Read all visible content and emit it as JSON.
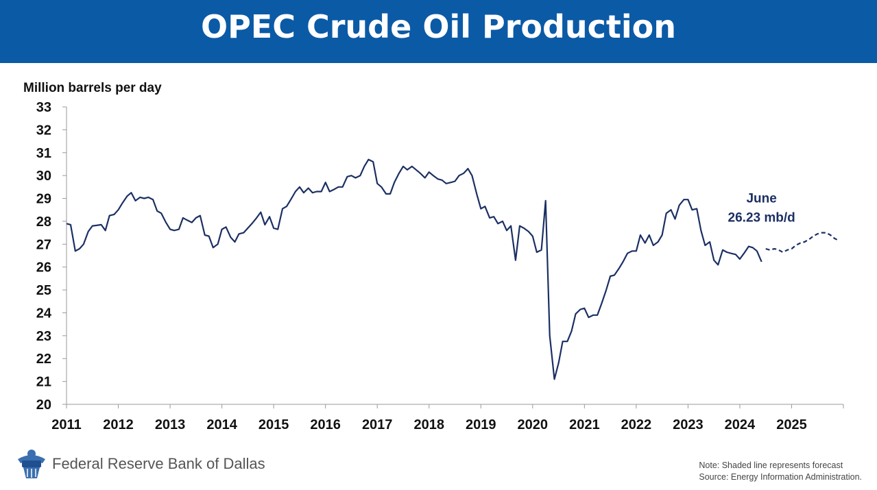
{
  "header": {
    "title": "OPEC Crude Oil Production"
  },
  "chart_data": {
    "type": "line",
    "title": "OPEC Crude Oil Production",
    "ylabel": "Million barrels per day",
    "xlabel": "",
    "ylim": [
      20,
      33
    ],
    "xlim": [
      2011,
      2026
    ],
    "yticks": [
      "20",
      "21",
      "22",
      "23",
      "24",
      "25",
      "26",
      "27",
      "28",
      "29",
      "30",
      "31",
      "32",
      "33"
    ],
    "xticks": [
      "2011",
      "2012",
      "2013",
      "2014",
      "2015",
      "2016",
      "2017",
      "2018",
      "2019",
      "2020",
      "2021",
      "2022",
      "2023",
      "2024",
      "2025"
    ],
    "grid": false,
    "series": [
      {
        "style": "solid",
        "color": "#1b2f63",
        "x": [
          2011.0,
          2011.08,
          2011.17,
          2011.25,
          2011.33,
          2011.42,
          2011.5,
          2011.58,
          2011.67,
          2011.75,
          2011.83,
          2011.92,
          2012.0,
          2012.08,
          2012.17,
          2012.25,
          2012.33,
          2012.42,
          2012.5,
          2012.58,
          2012.67,
          2012.75,
          2012.83,
          2012.92,
          2013.0,
          2013.08,
          2013.17,
          2013.25,
          2013.33,
          2013.42,
          2013.5,
          2013.58,
          2013.67,
          2013.75,
          2013.83,
          2013.92,
          2014.0,
          2014.08,
          2014.17,
          2014.25,
          2014.33,
          2014.42,
          2014.5,
          2014.58,
          2014.67,
          2014.75,
          2014.83,
          2014.92,
          2015.0,
          2015.08,
          2015.17,
          2015.25,
          2015.33,
          2015.42,
          2015.5,
          2015.58,
          2015.67,
          2015.75,
          2015.83,
          2015.92,
          2016.0,
          2016.08,
          2016.17,
          2016.25,
          2016.33,
          2016.42,
          2016.5,
          2016.58,
          2016.67,
          2016.75,
          2016.83,
          2016.92,
          2017.0,
          2017.08,
          2017.17,
          2017.25,
          2017.33,
          2017.42,
          2017.5,
          2017.58,
          2017.67,
          2017.75,
          2017.83,
          2017.92,
          2018.0,
          2018.08,
          2018.17,
          2018.25,
          2018.33,
          2018.42,
          2018.5,
          2018.58,
          2018.67,
          2018.75,
          2018.83,
          2018.92,
          2019.0,
          2019.08,
          2019.17,
          2019.25,
          2019.33,
          2019.42,
          2019.5,
          2019.58,
          2019.67,
          2019.75,
          2019.83,
          2019.92,
          2020.0,
          2020.08,
          2020.17,
          2020.25,
          2020.33,
          2020.42,
          2020.5,
          2020.58,
          2020.67,
          2020.75,
          2020.83,
          2020.92,
          2021.0,
          2021.08,
          2021.17,
          2021.25,
          2021.33,
          2021.42,
          2021.5,
          2021.58,
          2021.67,
          2021.75,
          2021.83,
          2021.92,
          2022.0,
          2022.08,
          2022.17,
          2022.25,
          2022.33,
          2022.42,
          2022.5,
          2022.58,
          2022.67,
          2022.75,
          2022.83,
          2022.92,
          2023.0,
          2023.08,
          2023.17,
          2023.25,
          2023.33,
          2023.42,
          2023.5,
          2023.58,
          2023.67,
          2023.75,
          2023.83,
          2023.92,
          2024.0,
          2024.08,
          2024.17,
          2024.25,
          2024.33,
          2024.42
        ],
        "y": [
          27.9,
          27.85,
          26.7,
          26.8,
          27.0,
          27.55,
          27.8,
          27.82,
          27.85,
          27.6,
          28.25,
          28.3,
          28.5,
          28.8,
          29.1,
          29.25,
          28.9,
          29.05,
          29.0,
          29.05,
          28.95,
          28.45,
          28.35,
          27.95,
          27.65,
          27.6,
          27.65,
          28.15,
          28.05,
          27.95,
          28.15,
          28.25,
          27.4,
          27.35,
          26.85,
          27.0,
          27.65,
          27.75,
          27.3,
          27.1,
          27.45,
          27.5,
          27.7,
          27.9,
          28.15,
          28.4,
          27.85,
          28.2,
          27.7,
          27.65,
          28.55,
          28.65,
          28.95,
          29.3,
          29.5,
          29.25,
          29.45,
          29.25,
          29.3,
          29.3,
          29.7,
          29.3,
          29.4,
          29.5,
          29.5,
          29.95,
          30.0,
          29.9,
          30.0,
          30.4,
          30.7,
          30.6,
          29.65,
          29.5,
          29.2,
          29.2,
          29.7,
          30.1,
          30.4,
          30.25,
          30.4,
          30.25,
          30.1,
          29.9,
          30.15,
          30.0,
          29.85,
          29.8,
          29.65,
          29.7,
          29.75,
          30.0,
          30.1,
          30.3,
          30.0,
          29.2,
          28.55,
          28.65,
          28.15,
          28.2,
          27.9,
          28.0,
          27.6,
          27.8,
          26.3,
          27.8,
          27.7,
          27.55,
          27.35,
          26.65,
          26.75,
          28.9,
          23.0,
          21.1,
          21.8,
          22.75,
          22.75,
          23.2,
          23.95,
          24.15,
          24.2,
          23.8,
          23.9,
          23.9,
          24.4,
          25.0,
          25.6,
          25.65,
          25.95,
          26.25,
          26.6,
          26.7,
          26.7,
          27.4,
          27.05,
          27.4,
          26.95,
          27.1,
          27.4,
          28.35,
          28.5,
          28.1,
          28.7,
          28.95,
          28.95,
          28.5,
          28.55,
          27.6,
          26.95,
          27.1,
          26.3,
          26.1,
          26.75,
          26.65,
          26.6,
          26.55,
          26.35,
          26.6,
          26.9,
          26.85,
          26.7,
          26.23
        ]
      },
      {
        "style": "dashed",
        "label": "forecast",
        "color": "#1b2f63",
        "x": [
          2024.5,
          2024.58,
          2024.67,
          2024.75,
          2024.83,
          2024.92,
          2025.0,
          2025.08,
          2025.17,
          2025.25,
          2025.33,
          2025.42,
          2025.5,
          2025.58,
          2025.67,
          2025.75,
          2025.83,
          2025.92
        ],
        "y": [
          26.8,
          26.75,
          26.8,
          26.75,
          26.65,
          26.75,
          26.8,
          26.95,
          27.05,
          27.1,
          27.2,
          27.35,
          27.45,
          27.5,
          27.5,
          27.4,
          27.25,
          27.15
        ]
      }
    ],
    "annotations": [
      {
        "text_lines": [
          "June",
          "26.23 mb/d"
        ],
        "at_x": 2024.42,
        "at_y": 27.8
      }
    ]
  },
  "footer": {
    "org_name": "Federal Reserve Bank of Dallas",
    "note_line1": "Note: Shaded line represents forecast",
    "note_line2": "Source: Energy Information Administration."
  }
}
